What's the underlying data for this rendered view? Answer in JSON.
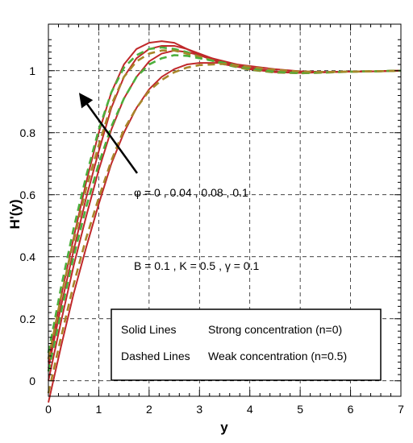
{
  "chart_data": {
    "type": "line",
    "xlabel": "y",
    "ylabel": "H'(y)",
    "xlim": [
      0,
      7
    ],
    "ylim": [
      -0.05,
      1.15
    ],
    "x_ticks": [
      "0",
      "1",
      "2",
      "3",
      "4",
      "5",
      "6",
      "7"
    ],
    "y_ticks": [
      "0",
      "0.2",
      "0.4",
      "0.6",
      "0.8",
      "1"
    ],
    "grid": true,
    "colors": {
      "solid": "#c0282a",
      "dashed": "#4caf3c",
      "dashed_alt": "#a8862a"
    },
    "x": [
      0,
      0.25,
      0.5,
      0.75,
      1.0,
      1.25,
      1.5,
      1.75,
      2.0,
      2.25,
      2.5,
      2.75,
      3.0,
      3.5,
      4.0,
      4.5,
      5.0,
      5.5,
      6.0,
      6.5,
      7.0
    ],
    "series": [
      {
        "phi": "0.1",
        "style": "solid",
        "values": [
          0.06,
          0.27,
          0.46,
          0.64,
          0.8,
          0.93,
          1.02,
          1.07,
          1.09,
          1.095,
          1.09,
          1.07,
          1.05,
          1.02,
          1.005,
          0.995,
          0.993,
          0.995,
          0.997,
          0.998,
          1.0
        ]
      },
      {
        "phi": "0.08",
        "style": "solid",
        "values": [
          0.04,
          0.24,
          0.42,
          0.59,
          0.74,
          0.88,
          0.98,
          1.04,
          1.07,
          1.08,
          1.08,
          1.07,
          1.055,
          1.025,
          1.005,
          0.996,
          0.993,
          0.995,
          0.997,
          0.998,
          1.0
        ]
      },
      {
        "phi": "0.04",
        "style": "solid",
        "values": [
          0.0,
          0.19,
          0.37,
          0.53,
          0.68,
          0.81,
          0.91,
          0.98,
          1.03,
          1.055,
          1.065,
          1.06,
          1.05,
          1.03,
          1.01,
          0.998,
          0.994,
          0.995,
          0.997,
          0.998,
          1.0
        ]
      },
      {
        "phi": "0",
        "style": "solid",
        "values": [
          -0.07,
          0.11,
          0.28,
          0.43,
          0.57,
          0.7,
          0.8,
          0.88,
          0.94,
          0.98,
          1.005,
          1.02,
          1.025,
          1.025,
          1.015,
          1.005,
          0.998,
          0.996,
          0.997,
          0.998,
          1.0
        ]
      },
      {
        "phi": "0.1",
        "style": "dashed",
        "values": [
          0.09,
          0.3,
          0.49,
          0.66,
          0.81,
          0.93,
          1.01,
          1.05,
          1.07,
          1.075,
          1.07,
          1.06,
          1.045,
          1.02,
          1.003,
          0.994,
          0.992,
          0.994,
          0.997,
          0.998,
          1.0
        ]
      },
      {
        "phi": "0.08",
        "style": "dashed",
        "values": [
          0.07,
          0.27,
          0.45,
          0.62,
          0.76,
          0.89,
          0.98,
          1.03,
          1.055,
          1.065,
          1.065,
          1.055,
          1.045,
          1.022,
          1.004,
          0.995,
          0.992,
          0.994,
          0.997,
          0.998,
          1.0
        ]
      },
      {
        "phi": "0.04",
        "style": "dashed",
        "values": [
          0.03,
          0.22,
          0.4,
          0.56,
          0.7,
          0.82,
          0.91,
          0.98,
          1.02,
          1.04,
          1.05,
          1.048,
          1.04,
          1.025,
          1.008,
          0.997,
          0.993,
          0.995,
          0.997,
          0.998,
          1.0
        ]
      },
      {
        "phi": "0",
        "style": "dashed",
        "values": [
          -0.04,
          0.14,
          0.31,
          0.46,
          0.59,
          0.71,
          0.81,
          0.88,
          0.935,
          0.97,
          0.995,
          1.01,
          1.018,
          1.022,
          1.012,
          1.003,
          0.997,
          0.996,
          0.997,
          0.998,
          1.0
        ]
      }
    ],
    "annotations": {
      "phi_label": "φ = 0 , 0.04 , 0.08 , 0.1",
      "params": "B = 0.1 , K = 0.5 , γ = 0.1"
    },
    "legend": {
      "placement": "lower-right",
      "rows": [
        {
          "key": "Solid Lines",
          "desc": "Strong concentration (n=0)"
        },
        {
          "key": "Dashed Lines",
          "desc": "Weak concentration (n=0.5)"
        }
      ]
    }
  }
}
